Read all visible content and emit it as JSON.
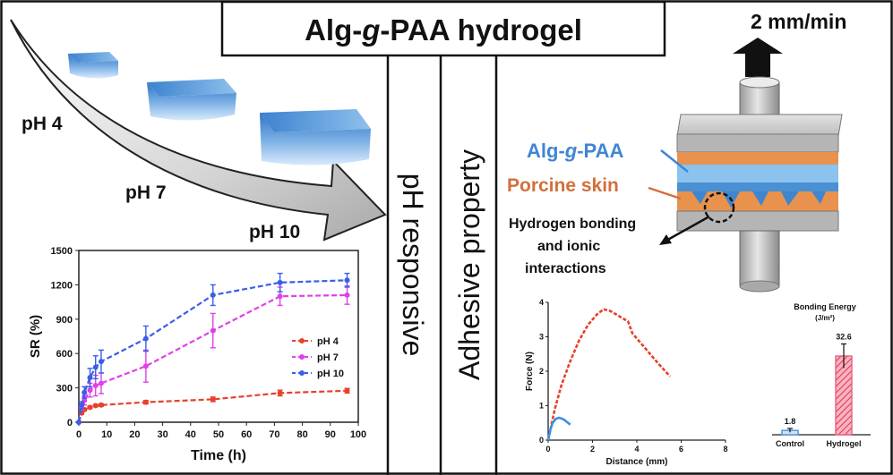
{
  "title": "Alg-g-PAA hydrogel",
  "title_parts": {
    "a": "Alg-",
    "g": "g",
    "b": "-PAA hydrogel"
  },
  "ph_labels": [
    "pH 4",
    "pH 7",
    "pH 10"
  ],
  "vertical_labels": {
    "left": "pH responsive",
    "right": "Adhesive property"
  },
  "adhesion": {
    "speed": "2 mm/min",
    "hydrogel_label": {
      "a": "Alg-",
      "g": "g",
      "b": "-PAA"
    },
    "skin_label": "Porcine skin",
    "interaction_lines": [
      "Hydrogen bonding",
      "and ionic",
      "interactions"
    ]
  },
  "colors": {
    "hydrogel_blue": "#4a90d4",
    "skin_orange": "#d2703a",
    "ph4": "#e8412a",
    "ph7": "#e040e8",
    "ph10": "#3a5ee8"
  },
  "chart_data": [
    {
      "type": "line",
      "xlabel": "Time (h)",
      "ylabel": "SR (%)",
      "xlim": [
        0,
        100
      ],
      "ylim": [
        0,
        1500
      ],
      "xticks": [
        "0",
        "10",
        "20",
        "30",
        "40",
        "50",
        "60",
        "70",
        "80",
        "90",
        "100"
      ],
      "yticks": [
        "0",
        "300",
        "600",
        "900",
        "1200",
        "1500"
      ],
      "legend": "center-right",
      "series": [
        {
          "name": "pH 4",
          "color": "#e8412a",
          "marker": "diamond",
          "x": [
            0,
            1,
            2,
            4,
            6,
            8,
            24,
            48,
            72,
            96
          ],
          "y": [
            0,
            80,
            110,
            130,
            145,
            150,
            175,
            200,
            255,
            275
          ],
          "err": [
            0,
            10,
            10,
            10,
            10,
            10,
            15,
            20,
            25,
            20
          ]
        },
        {
          "name": "pH 7",
          "color": "#e040e8",
          "marker": "triangle",
          "x": [
            0,
            1,
            2,
            4,
            6,
            8,
            24,
            48,
            72,
            96
          ],
          "y": [
            0,
            130,
            190,
            280,
            320,
            340,
            490,
            800,
            1100,
            1110
          ],
          "err": [
            0,
            20,
            40,
            60,
            90,
            90,
            140,
            150,
            80,
            80
          ]
        },
        {
          "name": "pH 10",
          "color": "#3a5ee8",
          "marker": "circle",
          "x": [
            0,
            1,
            2,
            4,
            6,
            8,
            24,
            48,
            72,
            96
          ],
          "y": [
            0,
            150,
            260,
            390,
            480,
            530,
            730,
            1110,
            1220,
            1240
          ],
          "err": [
            0,
            30,
            50,
            80,
            100,
            100,
            110,
            90,
            80,
            60
          ]
        }
      ]
    },
    {
      "type": "line",
      "xlabel": "Distance (mm)",
      "ylabel": "Force (N)",
      "xlim": [
        0,
        8
      ],
      "ylim": [
        0,
        4
      ],
      "xticks": [
        "0",
        "2",
        "4",
        "6",
        "8"
      ],
      "yticks": [
        "0",
        "1",
        "2",
        "3",
        "4"
      ],
      "series": [
        {
          "name": "Hydrogel",
          "color": "#e8412a",
          "x": [
            0,
            0.3,
            0.6,
            1.0,
            1.4,
            1.8,
            2.2,
            2.5,
            2.8,
            3.2,
            3.6,
            3.8,
            4.2,
            4.6,
            5.0,
            5.5
          ],
          "y": [
            0,
            0.9,
            1.6,
            2.3,
            2.9,
            3.35,
            3.65,
            3.8,
            3.75,
            3.6,
            3.45,
            3.1,
            2.8,
            2.5,
            2.2,
            1.85
          ]
        },
        {
          "name": "Control",
          "color": "#3a8ee8",
          "x": [
            0,
            0.1,
            0.2,
            0.35,
            0.5,
            0.7,
            0.9,
            1.0
          ],
          "y": [
            0,
            0.3,
            0.5,
            0.62,
            0.65,
            0.6,
            0.5,
            0.45
          ]
        }
      ]
    },
    {
      "type": "bar",
      "title": "Bonding Energy",
      "title_unit": "(J/m²)",
      "categories": [
        "Control",
        "Hydrogel"
      ],
      "values": [
        1.8,
        32.6
      ],
      "value_labels": [
        "1.8",
        "32.6"
      ],
      "ylim": [
        0,
        40
      ],
      "colors": [
        "#4a90d4",
        "#e8607a"
      ]
    }
  ]
}
